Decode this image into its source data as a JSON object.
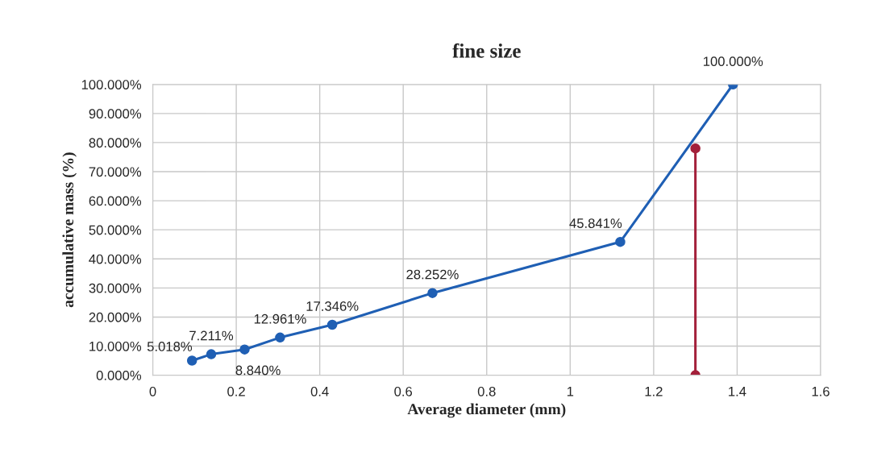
{
  "chart_data": {
    "type": "line",
    "title": "fine size",
    "xlabel": "Average diameter (mm)",
    "ylabel": "accumulative mass (%)",
    "xlim": [
      0,
      1.6
    ],
    "xticks": [
      0,
      0.2,
      0.4,
      0.6,
      0.8,
      1,
      1.2,
      1.4,
      1.6
    ],
    "ylim": [
      0,
      100
    ],
    "yticks": [
      {
        "value": 0,
        "label": "0.000%"
      },
      {
        "value": 10,
        "label": "10.000%"
      },
      {
        "value": 20,
        "label": "20.000%"
      },
      {
        "value": 30,
        "label": "30.000%"
      },
      {
        "value": 40,
        "label": "40.000%"
      },
      {
        "value": 50,
        "label": "50.000%"
      },
      {
        "value": 60,
        "label": "60.000%"
      },
      {
        "value": 70,
        "label": "70.000%"
      },
      {
        "value": 80,
        "label": "80.000%"
      },
      {
        "value": 90,
        "label": "90.000%"
      },
      {
        "value": 100,
        "label": "100.000%"
      }
    ],
    "grid": true,
    "legend": false,
    "marker": "circle",
    "series": [
      {
        "color": "#1f5fb4",
        "x": [
          0.094,
          0.14,
          0.22,
          0.305,
          0.43,
          0.67,
          1.12,
          1.39
        ],
        "values": [
          5.018,
          7.211,
          8.84,
          12.961,
          17.346,
          28.252,
          45.841,
          100
        ],
        "value_labels": [
          "5.018%",
          "7.211%",
          "8.840%",
          "12.961%",
          "17.346%",
          "28.252%",
          "45.841%",
          "100.000%"
        ]
      },
      {
        "color": "#a3203a",
        "x": [
          1.3,
          1.3
        ],
        "values": [
          78,
          0
        ]
      }
    ]
  }
}
